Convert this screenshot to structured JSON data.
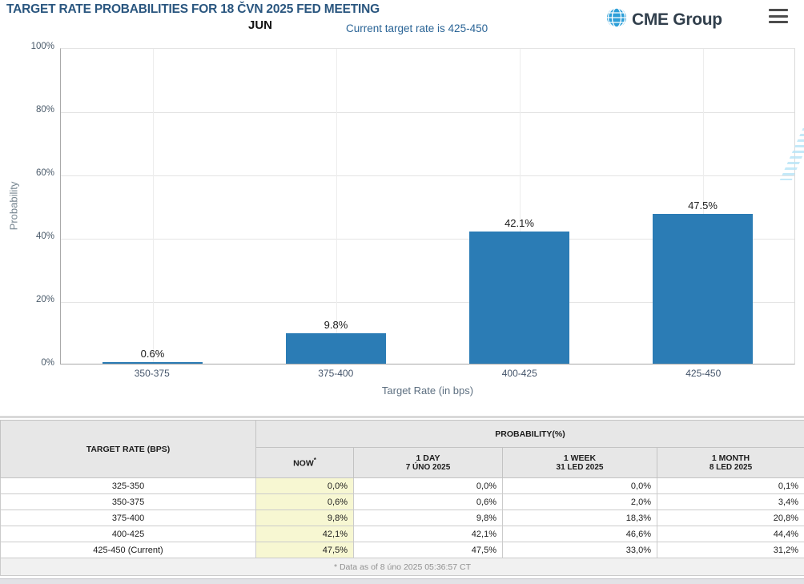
{
  "header": {
    "title": "TARGET RATE PROBABILITIES FOR 18 ČVN 2025 FED MEETING",
    "month_label": "JUN",
    "subtitle": "Current target rate is 425-450",
    "brand_name": "CME Group"
  },
  "chart_data": {
    "type": "bar",
    "categories": [
      "350-375",
      "375-400",
      "400-425",
      "425-450"
    ],
    "values": [
      0.6,
      9.8,
      42.1,
      47.5
    ],
    "value_labels": [
      "0.6%",
      "9.8%",
      "42.1%",
      "47.5%"
    ],
    "xlabel": "Target Rate (in bps)",
    "ylabel": "Probability",
    "y_ticks_top_down": [
      "100%",
      "80%",
      "60%",
      "40%",
      "20%",
      "0%"
    ],
    "ylim": [
      0,
      100
    ],
    "grid": true,
    "legend_position": "none",
    "bar_color": "#2b7cb5",
    "watermark_letter": "Q"
  },
  "table": {
    "col_rate_header": "TARGET RATE (BPS)",
    "group_header": "PROBABILITY(%)",
    "sub_headers": [
      {
        "title": "NOW",
        "sup": "*",
        "date": ""
      },
      {
        "title": "1 DAY",
        "sup": "",
        "date": "7 ÚNO 2025"
      },
      {
        "title": "1 WEEK",
        "sup": "",
        "date": "31 LED 2025"
      },
      {
        "title": "1 MONTH",
        "sup": "",
        "date": "8 LED 2025"
      }
    ],
    "rows": [
      {
        "rate": "325-350",
        "now": "0,0%",
        "day": "0,0%",
        "week": "0,0%",
        "month": "0,1%"
      },
      {
        "rate": "350-375",
        "now": "0,6%",
        "day": "0,6%",
        "week": "2,0%",
        "month": "3,4%"
      },
      {
        "rate": "375-400",
        "now": "9,8%",
        "day": "9,8%",
        "week": "18,3%",
        "month": "20,8%"
      },
      {
        "rate": "400-425",
        "now": "42,1%",
        "day": "42,1%",
        "week": "46,6%",
        "month": "44,4%"
      },
      {
        "rate": "425-450 (Current)",
        "now": "47,5%",
        "day": "47,5%",
        "week": "33,0%",
        "month": "31,2%"
      }
    ],
    "footnote": "* Data as of 8 úno 2025 05:36:57 CT"
  },
  "colors": {
    "bar_blue": "#2b7cb5",
    "now_highlight": "#f7f7d2",
    "title_navy": "#2a567f",
    "subtitle_blue": "#2a6496"
  }
}
